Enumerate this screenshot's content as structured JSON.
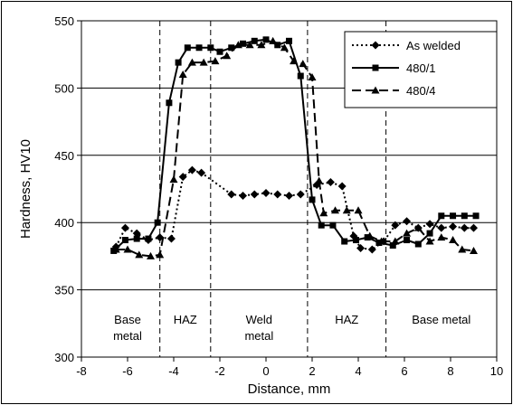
{
  "chart_data": {
    "type": "line",
    "xlabel": "Distance, mm",
    "ylabel": "Hardness, HV10",
    "xlim": [
      -8,
      10
    ],
    "ylim": [
      300,
      550
    ],
    "x_ticks": [
      "-8",
      "-6",
      "-4",
      "-2",
      "0",
      "2",
      "4",
      "6",
      "8",
      "10"
    ],
    "y_ticks": [
      "300",
      "350",
      "400",
      "450",
      "500",
      "550"
    ],
    "grid": "horizontal",
    "legend_position": "top-right",
    "region_boundaries": [
      -4.6,
      -2.4,
      1.8,
      5.2
    ],
    "regions": [
      {
        "lines": [
          "Base",
          "metal"
        ],
        "x": -6.0
      },
      {
        "lines": [
          "HAZ"
        ],
        "x": -3.5
      },
      {
        "lines": [
          "Weld",
          "metal"
        ],
        "x": -0.3
      },
      {
        "lines": [
          "HAZ"
        ],
        "x": 3.5
      },
      {
        "lines": [
          "Base metal"
        ],
        "x": 7.6
      }
    ],
    "series": [
      {
        "name": "As welded",
        "style": "dotted",
        "marker": "diamond",
        "points": [
          [
            -6.5,
            382
          ],
          [
            -6.1,
            396
          ],
          [
            -5.6,
            392
          ],
          [
            -5.1,
            387
          ],
          [
            -4.6,
            389
          ],
          [
            -4.1,
            388
          ],
          [
            -3.6,
            434
          ],
          [
            -3.2,
            439
          ],
          [
            -2.8,
            437
          ],
          [
            -1.5,
            421
          ],
          [
            -1.0,
            420
          ],
          [
            -0.5,
            421
          ],
          [
            0.0,
            422
          ],
          [
            0.5,
            421
          ],
          [
            1.0,
            420
          ],
          [
            1.5,
            421
          ],
          [
            2.2,
            428
          ],
          [
            2.8,
            430
          ],
          [
            3.3,
            427
          ],
          [
            3.8,
            390
          ],
          [
            4.1,
            381
          ],
          [
            4.6,
            380
          ],
          [
            5.1,
            386
          ],
          [
            5.6,
            398
          ],
          [
            6.1,
            401
          ],
          [
            6.6,
            396
          ],
          [
            7.1,
            399
          ],
          [
            7.6,
            396
          ],
          [
            8.1,
            397
          ],
          [
            8.6,
            396
          ],
          [
            9.0,
            396
          ]
        ]
      },
      {
        "name": "480/1",
        "style": "solid",
        "marker": "square",
        "points": [
          [
            -6.6,
            379
          ],
          [
            -6.1,
            387
          ],
          [
            -5.6,
            388
          ],
          [
            -5.1,
            388
          ],
          [
            -4.7,
            400
          ],
          [
            -4.2,
            489
          ],
          [
            -3.8,
            519
          ],
          [
            -3.4,
            530
          ],
          [
            -2.9,
            530
          ],
          [
            -2.4,
            530
          ],
          [
            -2.0,
            527
          ],
          [
            -1.5,
            530
          ],
          [
            -1.0,
            533
          ],
          [
            -0.5,
            535
          ],
          [
            0.0,
            536
          ],
          [
            0.5,
            532
          ],
          [
            1.0,
            535
          ],
          [
            1.5,
            509
          ],
          [
            2.0,
            417
          ],
          [
            2.4,
            398
          ],
          [
            2.9,
            398
          ],
          [
            3.4,
            386
          ],
          [
            3.9,
            387
          ],
          [
            4.4,
            389
          ],
          [
            4.9,
            385
          ],
          [
            5.5,
            383
          ],
          [
            6.1,
            387
          ],
          [
            6.6,
            384
          ],
          [
            7.1,
            392
          ],
          [
            7.6,
            405
          ],
          [
            8.1,
            405
          ],
          [
            8.6,
            405
          ],
          [
            9.1,
            405
          ]
        ]
      },
      {
        "name": "480/4",
        "style": "dashed",
        "marker": "triangle",
        "points": [
          [
            -6.5,
            380
          ],
          [
            -6.0,
            380
          ],
          [
            -5.5,
            376
          ],
          [
            -5.0,
            375
          ],
          [
            -4.6,
            376
          ],
          [
            -4.0,
            432
          ],
          [
            -3.6,
            510
          ],
          [
            -3.2,
            519
          ],
          [
            -2.7,
            519
          ],
          [
            -2.2,
            520
          ],
          [
            -1.7,
            524
          ],
          [
            -1.2,
            532
          ],
          [
            -0.7,
            532
          ],
          [
            -0.2,
            532
          ],
          [
            0.3,
            535
          ],
          [
            0.8,
            530
          ],
          [
            1.2,
            520
          ],
          [
            1.6,
            518
          ],
          [
            2.0,
            508
          ],
          [
            2.3,
            431
          ],
          [
            2.5,
            407
          ],
          [
            3.0,
            409
          ],
          [
            3.5,
            409
          ],
          [
            4.0,
            409
          ],
          [
            4.5,
            390
          ],
          [
            5.0,
            386
          ],
          [
            5.6,
            386
          ],
          [
            6.1,
            392
          ],
          [
            6.6,
            396
          ],
          [
            7.1,
            386
          ],
          [
            7.6,
            389
          ],
          [
            8.1,
            387
          ],
          [
            8.5,
            380
          ],
          [
            9.0,
            379
          ]
        ]
      }
    ]
  }
}
